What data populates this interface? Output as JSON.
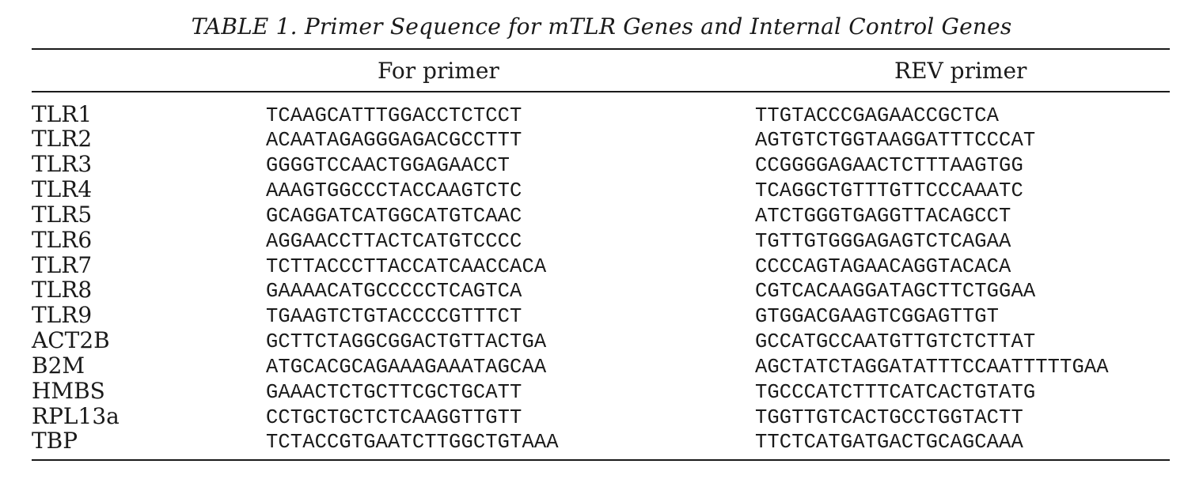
{
  "table": {
    "caption": "TABLE 1. Primer Sequence for mTLR Genes and Internal Control Genes",
    "headers": {
      "gene": "",
      "forward": "For primer",
      "reverse": "REV primer"
    },
    "rows": [
      {
        "gene": "TLR1",
        "forward": "TCAAGCATTTGGACCTCTCCT",
        "reverse": "TTGTACCCGAGAACCGCTCA"
      },
      {
        "gene": "TLR2",
        "forward": "ACAATAGAGGGAGACGCCTTT",
        "reverse": "AGTGTCTGGTAAGGATTTCCCAT"
      },
      {
        "gene": "TLR3",
        "forward": "GGGGTCCAACTGGAGAACCT",
        "reverse": "CCGGGGAGAACTCTTTAAGTGG"
      },
      {
        "gene": "TLR4",
        "forward": "AAAGTGGCCCTACCAAGTCTC",
        "reverse": "TCAGGCTGTTTGTTCCCAAATC"
      },
      {
        "gene": "TLR5",
        "forward": "GCAGGATCATGGCATGTCAAC",
        "reverse": "ATCTGGGTGAGGTTACAGCCT"
      },
      {
        "gene": "TLR6",
        "forward": "AGGAACCTTACTCATGTCCCC",
        "reverse": "TGTTGTGGGAGAGTCTCAGAA"
      },
      {
        "gene": "TLR7",
        "forward": "TCTTACCCTTACCATCAACCACA",
        "reverse": "CCCCAGTAGAACAGGTACACA"
      },
      {
        "gene": "TLR8",
        "forward": "GAAAACATGCCCCCTCAGTCA",
        "reverse": "CGTCACAAGGATAGCTTCTGGAA"
      },
      {
        "gene": "TLR9",
        "forward": "TGAAGTCTGTACCCCGTTTCT",
        "reverse": "GTGGACGAAGTCGGAGTTGT"
      },
      {
        "gene": "ACT2B",
        "forward": "GCTTCTAGGCGGACTGTTACTGA",
        "reverse": "GCCATGCCAATGTTGTCTCTTAT"
      },
      {
        "gene": "B2M",
        "forward": "ATGCACGCAGAAAGAAATAGCAA",
        "reverse": "AGCTATCTAGGATATTTCCAATTTTTGAA"
      },
      {
        "gene": "HMBS",
        "forward": "GAAACTCTGCTTCGCTGCATT",
        "reverse": "TGCCCATCTTTCATCACTGTATG"
      },
      {
        "gene": "RPL13a",
        "forward": "CCTGCTGCTCTCAAGGTTGTT",
        "reverse": "TGGTTGTCACTGCCTGGTACTT"
      },
      {
        "gene": "TBP",
        "forward": "TCTACCGTGAATCTTGGCTGTAAA",
        "reverse": "TTCTCATGATGACTGCAGCAAA"
      }
    ]
  }
}
